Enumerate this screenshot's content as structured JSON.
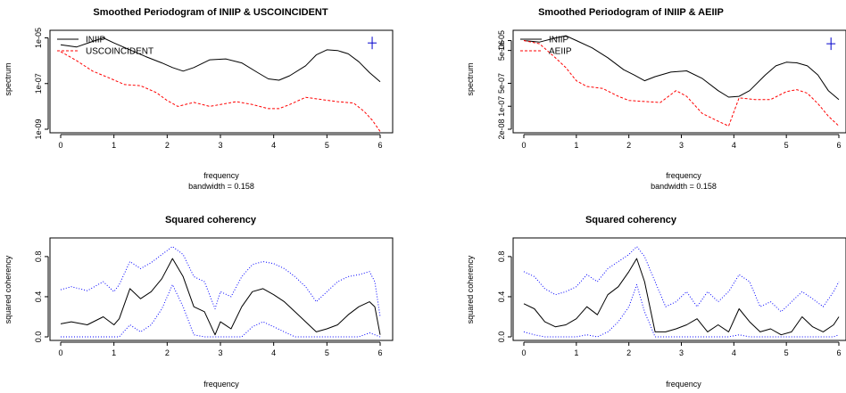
{
  "chart_data": [
    {
      "id": "p1",
      "type": "line",
      "title": "Smoothed Periodogram of INIIP & USCOINCIDENT",
      "xlabel": "frequency",
      "xlabel2": "bandwidth = 0.158",
      "ylabel": "spectrum",
      "log_y": true,
      "xlim": [
        0,
        6
      ],
      "ylim": [
        1e-09,
        1.5e-05
      ],
      "xticks": [
        0,
        1,
        2,
        3,
        4,
        5,
        6
      ],
      "yticks": [
        {
          "v": 1e-09,
          "label": "1e-09"
        },
        {
          "v": 1e-07,
          "label": "1e-07"
        },
        {
          "v": 1e-05,
          "label": "1e-05"
        }
      ],
      "legend_position": "top-left",
      "series": [
        {
          "name": "INIIP",
          "color": "#000000",
          "dash": "solid",
          "x": [
            0,
            0.3,
            0.6,
            0.8,
            1.0,
            1.3,
            1.6,
            1.9,
            2.1,
            2.3,
            2.5,
            2.8,
            3.1,
            3.4,
            3.7,
            3.9,
            4.1,
            4.3,
            4.6,
            4.8,
            5.0,
            5.2,
            5.4,
            5.6,
            5.8,
            6.0
          ],
          "y": [
            5e-06,
            4e-06,
            7e-06,
            1e-05,
            6e-06,
            3e-06,
            1.5e-06,
            8e-07,
            5e-07,
            3.5e-07,
            5e-07,
            1.1e-06,
            1.2e-06,
            8e-07,
            3e-07,
            1.6e-07,
            1.4e-07,
            2.2e-07,
            6e-07,
            1.8e-06,
            3e-06,
            2.8e-06,
            2e-06,
            9e-07,
            3e-07,
            1.2e-07
          ]
        },
        {
          "name": "USCOINCIDENT",
          "color": "#ff0000",
          "dash": "dashed",
          "x": [
            0,
            0.3,
            0.6,
            0.9,
            1.2,
            1.5,
            1.8,
            2.0,
            2.2,
            2.5,
            2.8,
            3.0,
            3.3,
            3.6,
            3.9,
            4.1,
            4.3,
            4.6,
            4.9,
            5.2,
            5.5,
            5.7,
            5.85,
            6.0
          ],
          "y": [
            2.5e-06,
            1e-06,
            3.5e-07,
            1.8e-07,
            9e-08,
            8e-08,
            4e-08,
            1.8e-08,
            1e-08,
            1.5e-08,
            1e-08,
            1.2e-08,
            1.6e-08,
            1.2e-08,
            8e-09,
            8e-09,
            1.2e-08,
            2.5e-08,
            2e-08,
            1.6e-08,
            1.4e-08,
            6e-09,
            2.5e-09,
            8e-10
          ]
        }
      ],
      "crosshair": {
        "x": 5.85,
        "y": 6e-06,
        "color": "#0000cc"
      }
    },
    {
      "id": "p2",
      "type": "line",
      "title": "Smoothed Periodogram of INIIP & AEIIP",
      "xlabel": "frequency",
      "xlabel2": "bandwidth = 0.158",
      "ylabel": "spectrum",
      "log_y": true,
      "xlim": [
        0,
        6
      ],
      "ylim": [
        2e-08,
        1.6e-05
      ],
      "xticks": [
        0,
        1,
        2,
        3,
        4,
        5,
        6
      ],
      "yticks": [
        {
          "v": 2e-08,
          "label": "2e-08"
        },
        {
          "v": 1e-07,
          "label": "1e-07"
        },
        {
          "v": 5e-07,
          "label": "5e-07"
        },
        {
          "v": 5e-06,
          "label": "5e-06"
        },
        {
          "v": 1e-05,
          "label": "1e-05"
        }
      ],
      "legend_position": "top-left",
      "series": [
        {
          "name": "INIIP",
          "color": "#000000",
          "dash": "solid",
          "x": [
            0,
            0.3,
            0.6,
            0.8,
            1.0,
            1.3,
            1.6,
            1.9,
            2.1,
            2.3,
            2.5,
            2.8,
            3.1,
            3.4,
            3.7,
            3.9,
            4.1,
            4.3,
            4.6,
            4.8,
            5.0,
            5.2,
            5.4,
            5.6,
            5.8,
            6.0
          ],
          "y": [
            1e-05,
            9e-06,
            1.2e-05,
            1.4e-05,
            1e-05,
            6e-06,
            3e-06,
            1.3e-06,
            9e-07,
            6e-07,
            8e-07,
            1.1e-06,
            1.2e-06,
            7e-07,
            3e-07,
            1.9e-07,
            2e-07,
            3e-07,
            9e-07,
            1.7e-06,
            2.2e-06,
            2.1e-06,
            1.7e-06,
            9e-07,
            3e-07,
            1.6e-07
          ]
        },
        {
          "name": "AEIIP",
          "color": "#ff0000",
          "dash": "dashed",
          "x": [
            0,
            0.3,
            0.6,
            0.8,
            1.0,
            1.2,
            1.5,
            1.8,
            2.0,
            2.3,
            2.6,
            2.9,
            3.1,
            3.4,
            3.7,
            3.9,
            4.1,
            4.4,
            4.7,
            5.0,
            5.2,
            5.4,
            5.6,
            5.8,
            6.0
          ],
          "y": [
            1e-05,
            8e-06,
            3e-06,
            1.5e-06,
            6e-07,
            4e-07,
            3.5e-07,
            2e-07,
            1.5e-07,
            1.4e-07,
            1.3e-07,
            3e-07,
            2e-07,
            6e-08,
            3.5e-08,
            2.5e-08,
            1.8e-07,
            1.6e-07,
            1.6e-07,
            2.8e-07,
            3.2e-07,
            2.5e-07,
            1.2e-07,
            5e-08,
            2.5e-08
          ]
        }
      ],
      "crosshair": {
        "x": 5.85,
        "y": 8e-06,
        "color": "#0000cc"
      }
    },
    {
      "id": "p3",
      "type": "line",
      "title": "Squared coherency",
      "xlabel": "frequency",
      "ylabel": "squared coherency",
      "log_y": false,
      "xlim": [
        0,
        6
      ],
      "ylim": [
        0,
        0.95
      ],
      "xticks": [
        0,
        1,
        2,
        3,
        4,
        5,
        6
      ],
      "yticks": [
        {
          "v": 0,
          "label": "0.0"
        },
        {
          "v": 0.4,
          "label": "0.4"
        },
        {
          "v": 0.8,
          "label": "0.8"
        }
      ],
      "series": [
        {
          "color": "#0000ff",
          "dash": "dotted",
          "x": [
            0,
            0.2,
            0.5,
            0.8,
            1.0,
            1.1,
            1.3,
            1.5,
            1.7,
            1.9,
            2.1,
            2.3,
            2.5,
            2.7,
            2.9,
            3.0,
            3.2,
            3.4,
            3.6,
            3.8,
            4.0,
            4.2,
            4.4,
            4.6,
            4.8,
            5.0,
            5.2,
            5.4,
            5.6,
            5.8,
            5.9,
            6.0
          ],
          "y": [
            0.47,
            0.5,
            0.46,
            0.55,
            0.45,
            0.52,
            0.75,
            0.68,
            0.74,
            0.82,
            0.9,
            0.82,
            0.6,
            0.55,
            0.28,
            0.45,
            0.4,
            0.6,
            0.72,
            0.75,
            0.73,
            0.68,
            0.6,
            0.5,
            0.35,
            0.45,
            0.55,
            0.6,
            0.62,
            0.65,
            0.55,
            0.2
          ]
        },
        {
          "color": "#000000",
          "dash": "solid",
          "x": [
            0,
            0.2,
            0.5,
            0.8,
            1.0,
            1.1,
            1.3,
            1.5,
            1.7,
            1.9,
            2.1,
            2.3,
            2.5,
            2.7,
            2.9,
            3.0,
            3.2,
            3.4,
            3.6,
            3.8,
            4.0,
            4.2,
            4.4,
            4.6,
            4.8,
            5.0,
            5.2,
            5.4,
            5.6,
            5.8,
            5.9,
            6.0
          ],
          "y": [
            0.13,
            0.15,
            0.12,
            0.2,
            0.12,
            0.18,
            0.48,
            0.38,
            0.45,
            0.58,
            0.78,
            0.6,
            0.3,
            0.25,
            0.02,
            0.15,
            0.08,
            0.3,
            0.45,
            0.48,
            0.42,
            0.35,
            0.25,
            0.15,
            0.05,
            0.08,
            0.12,
            0.22,
            0.3,
            0.35,
            0.3,
            0.02
          ]
        },
        {
          "color": "#0000ff",
          "dash": "dotted",
          "x": [
            0,
            0.2,
            0.5,
            0.8,
            1.0,
            1.1,
            1.3,
            1.5,
            1.7,
            1.9,
            2.1,
            2.3,
            2.5,
            2.7,
            2.9,
            3.0,
            3.2,
            3.4,
            3.6,
            3.8,
            4.0,
            4.2,
            4.4,
            4.6,
            4.8,
            5.0,
            5.2,
            5.4,
            5.6,
            5.8,
            5.9,
            6.0
          ],
          "y": [
            0,
            0,
            0,
            0,
            0,
            0,
            0.12,
            0.05,
            0.12,
            0.28,
            0.52,
            0.3,
            0.02,
            0,
            0,
            0,
            0,
            0,
            0.1,
            0.15,
            0.1,
            0.05,
            0,
            0,
            0,
            0,
            0,
            0,
            0,
            0.04,
            0.02,
            0
          ]
        }
      ]
    },
    {
      "id": "p4",
      "type": "line",
      "title": "Squared coherency",
      "xlabel": "frequency",
      "ylabel": "squared coherency",
      "log_y": false,
      "xlim": [
        0,
        6
      ],
      "ylim": [
        0,
        0.95
      ],
      "xticks": [
        0,
        1,
        2,
        3,
        4,
        5,
        6
      ],
      "yticks": [
        {
          "v": 0,
          "label": "0.0"
        },
        {
          "v": 0.4,
          "label": "0.4"
        },
        {
          "v": 0.8,
          "label": "0.8"
        }
      ],
      "series": [
        {
          "color": "#0000ff",
          "dash": "dotted",
          "x": [
            0,
            0.2,
            0.4,
            0.6,
            0.8,
            1.0,
            1.2,
            1.4,
            1.6,
            1.8,
            2.0,
            2.15,
            2.3,
            2.5,
            2.7,
            2.9,
            3.1,
            3.3,
            3.5,
            3.7,
            3.9,
            4.1,
            4.3,
            4.5,
            4.7,
            4.9,
            5.1,
            5.3,
            5.5,
            5.7,
            5.9,
            6.0
          ],
          "y": [
            0.65,
            0.6,
            0.48,
            0.42,
            0.45,
            0.5,
            0.62,
            0.55,
            0.68,
            0.75,
            0.82,
            0.9,
            0.8,
            0.55,
            0.3,
            0.35,
            0.45,
            0.3,
            0.45,
            0.35,
            0.45,
            0.62,
            0.55,
            0.3,
            0.35,
            0.25,
            0.35,
            0.45,
            0.38,
            0.3,
            0.45,
            0.55
          ]
        },
        {
          "color": "#000000",
          "dash": "solid",
          "x": [
            0,
            0.2,
            0.4,
            0.6,
            0.8,
            1.0,
            1.2,
            1.4,
            1.6,
            1.8,
            2.0,
            2.15,
            2.3,
            2.5,
            2.7,
            2.9,
            3.1,
            3.3,
            3.5,
            3.7,
            3.9,
            4.1,
            4.3,
            4.5,
            4.7,
            4.9,
            5.1,
            5.3,
            5.5,
            5.7,
            5.9,
            6.0
          ],
          "y": [
            0.33,
            0.28,
            0.15,
            0.1,
            0.12,
            0.18,
            0.3,
            0.22,
            0.42,
            0.5,
            0.65,
            0.78,
            0.55,
            0.05,
            0.05,
            0.08,
            0.12,
            0.18,
            0.05,
            0.12,
            0.05,
            0.28,
            0.15,
            0.05,
            0.08,
            0.02,
            0.05,
            0.2,
            0.1,
            0.05,
            0.12,
            0.2
          ]
        },
        {
          "color": "#0000ff",
          "dash": "dotted",
          "x": [
            0,
            0.2,
            0.4,
            0.6,
            0.8,
            1.0,
            1.2,
            1.4,
            1.6,
            1.8,
            2.0,
            2.15,
            2.3,
            2.5,
            2.7,
            2.9,
            3.1,
            3.3,
            3.5,
            3.7,
            3.9,
            4.1,
            4.3,
            4.5,
            4.7,
            4.9,
            5.1,
            5.3,
            5.5,
            5.7,
            5.9,
            6.0
          ],
          "y": [
            0.05,
            0.02,
            0,
            0,
            0,
            0,
            0.02,
            0,
            0.05,
            0.15,
            0.3,
            0.52,
            0.25,
            0,
            0,
            0,
            0,
            0,
            0,
            0,
            0,
            0.02,
            0,
            0,
            0,
            0,
            0,
            0,
            0,
            0,
            0,
            0.02
          ]
        }
      ]
    }
  ]
}
